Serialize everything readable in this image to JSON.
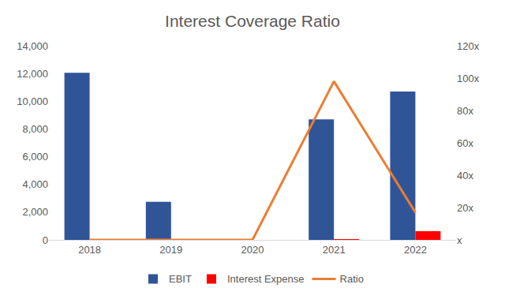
{
  "chart_data": {
    "type": "bar",
    "title": "Interest Coverage Ratio",
    "categories": [
      "2018",
      "2019",
      "2020",
      "2021",
      "2022"
    ],
    "series": [
      {
        "name": "EBIT",
        "type": "bar",
        "color": "#2f5597",
        "values": [
          12050,
          2750,
          0,
          8700,
          10700
        ]
      },
      {
        "name": "Interest Expense",
        "type": "bar",
        "color": "#ff0000",
        "values": [
          0,
          0,
          0,
          60,
          620
        ]
      },
      {
        "name": "Ratio",
        "type": "line",
        "axis": "y2",
        "color": "#ed7d31",
        "values": [
          0,
          0,
          0,
          98,
          17
        ]
      }
    ],
    "ylim": [
      0,
      14000
    ],
    "yticks": [
      0,
      {
        "value": 2000,
        "label": "2,000"
      },
      {
        "value": 4000,
        "label": "4,000"
      },
      {
        "value": 6000,
        "label": "6,000"
      },
      {
        "value": 8000,
        "label": "8,000"
      },
      {
        "value": 10000,
        "label": "10,000"
      },
      {
        "value": 12000,
        "label": "12,000"
      },
      {
        "value": 14000,
        "label": "14,000"
      }
    ],
    "y2lim": [
      0,
      120
    ],
    "y2ticks": [
      {
        "value": 0,
        "label": "x"
      },
      {
        "value": 20,
        "label": "20x"
      },
      {
        "value": 40,
        "label": "40x"
      },
      {
        "value": 60,
        "label": "60x"
      },
      {
        "value": 80,
        "label": "80x"
      },
      {
        "value": 100,
        "label": "100x"
      },
      {
        "value": 120,
        "label": "120x"
      }
    ],
    "grid": false,
    "legend": "bottom"
  }
}
